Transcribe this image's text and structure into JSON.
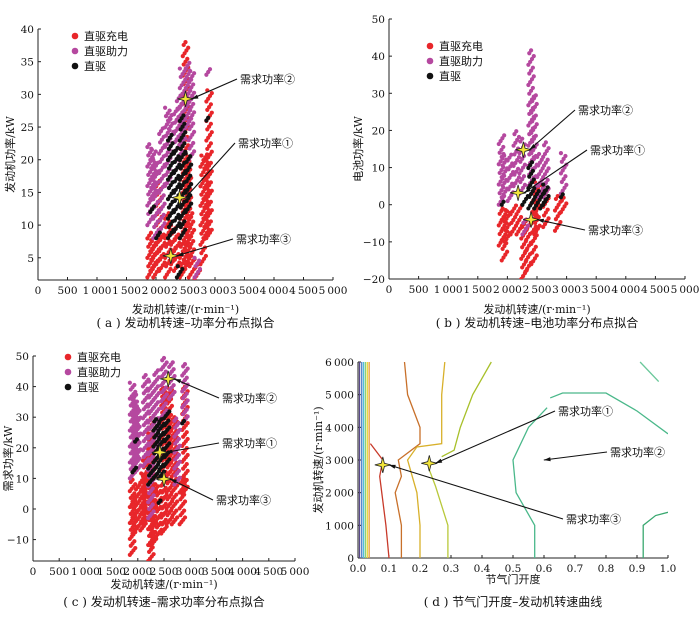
{
  "colors": {
    "charge": "#e8262a",
    "assist": "#b5489f",
    "direct": "#111111",
    "star": "#f3e63a"
  },
  "legend": [
    "直驱充电",
    "直驱助力",
    "直驱"
  ],
  "annotations": [
    "需求功率①",
    "需求功率②",
    "需求功率③"
  ],
  "chart_data": [
    {
      "id": "a",
      "type": "scatter",
      "caption": "( a ) 发动机转速–功率分布点拟合",
      "xlabel": "发动机转速/(r·min⁻¹)",
      "ylabel": "发动机功率/kW",
      "xlim": [
        0,
        5000
      ],
      "ylim": [
        1.6,
        40
      ],
      "xticks": [
        0,
        500,
        1000,
        1500,
        2000,
        2500,
        3000,
        3500,
        4000,
        4500,
        5000
      ],
      "yticks": [
        5,
        10,
        15,
        20,
        25,
        30,
        35,
        40
      ],
      "legend_position": "top-left",
      "series_columns_note_units": "each entry is [rpm, power_min, power_max]",
      "series": [
        {
          "name": "直驱充电",
          "color": "#e8262a",
          "columns": [
            [
              1900,
              2,
              9
            ],
            [
              1950,
              3,
              8
            ],
            [
              2000,
              2,
              7
            ],
            [
              2050,
              4,
              17
            ],
            [
              2100,
              3,
              9
            ],
            [
              2200,
              2,
              12
            ],
            [
              2300,
              4,
              10
            ],
            [
              2350,
              3,
              9
            ],
            [
              2450,
              2,
              26
            ],
            [
              2500,
              3,
              38
            ],
            [
              2550,
              4,
              20
            ],
            [
              2600,
              2,
              12
            ],
            [
              2700,
              1.8,
              5
            ],
            [
              2800,
              4,
              21
            ],
            [
              2850,
              8,
              21
            ],
            [
              2900,
              8,
              31
            ]
          ]
        },
        {
          "name": "直驱助力",
          "color": "#b5489f",
          "columns": [
            [
              1900,
              10,
              22.5
            ],
            [
              1950,
              14,
              22
            ],
            [
              2000,
              8,
              20
            ],
            [
              2100,
              9,
              25
            ],
            [
              2200,
              16,
              28
            ],
            [
              2250,
              20,
              27
            ],
            [
              2350,
              18,
              28
            ],
            [
              2400,
              20,
              30
            ],
            [
              2450,
              22,
              34
            ],
            [
              2550,
              25,
              35
            ],
            [
              2600,
              20,
              34
            ],
            [
              2700,
              2,
              5
            ],
            [
              2900,
              33,
              34
            ]
          ]
        },
        {
          "name": "直驱",
          "color": "#111111",
          "columns": [
            [
              1950,
              12,
              13
            ],
            [
              2050,
              8,
              9
            ],
            [
              2250,
              8,
              24
            ],
            [
              2350,
              9,
              22
            ],
            [
              2450,
              8,
              27
            ],
            [
              2550,
              12,
              21
            ],
            [
              2900,
              26,
              26.5
            ],
            [
              2400,
              2,
              4
            ]
          ]
        }
      ],
      "stars": [
        {
          "label": "需求功率①",
          "x": 2400,
          "y": 14.2
        },
        {
          "label": "需求功率②",
          "x": 2500,
          "y": 29.3
        },
        {
          "label": "需求功率③",
          "x": 2250,
          "y": 5.3
        }
      ]
    },
    {
      "id": "b",
      "type": "scatter",
      "caption": "( b ) 发动机转速–电池功率分布点拟合",
      "xlabel": "发动机转速/(r·min⁻¹)",
      "ylabel": "电池功率/kW",
      "xlim": [
        0,
        5000
      ],
      "ylim": [
        -20,
        50
      ],
      "xticks": [
        0,
        500,
        1000,
        1500,
        2000,
        2500,
        3000,
        3500,
        4000,
        4500,
        5000
      ],
      "yticks": [
        -20,
        -10,
        0,
        10,
        20,
        30,
        40,
        50
      ],
      "legend_position": "top-left",
      "series": [
        {
          "name": "直驱充电",
          "color": "#e8262a",
          "columns": [
            [
              1900,
              -11,
              -1
            ],
            [
              1950,
              -15,
              -1
            ],
            [
              2000,
              -10,
              -1
            ],
            [
              2100,
              -8,
              0
            ],
            [
              2200,
              -8,
              0
            ],
            [
              2280,
              -20,
              -4
            ],
            [
              2350,
              -18,
              -4
            ],
            [
              2450,
              -16,
              2
            ],
            [
              2500,
              -8,
              6
            ],
            [
              2650,
              -6,
              5
            ],
            [
              2850,
              -7,
              3
            ],
            [
              2950,
              -2,
              2
            ]
          ]
        },
        {
          "name": "直驱助力",
          "color": "#b5489f",
          "columns": [
            [
              1900,
              0,
              19
            ],
            [
              1950,
              2,
              14
            ],
            [
              2050,
              1,
              14
            ],
            [
              2150,
              5,
              20
            ],
            [
              2250,
              3,
              18
            ],
            [
              2400,
              5,
              42
            ],
            [
              2450,
              3,
              30
            ],
            [
              2550,
              2,
              14
            ],
            [
              2650,
              2,
              17
            ],
            [
              2950,
              3,
              14
            ],
            [
              2300,
              -8,
              -4
            ]
          ]
        },
        {
          "name": "直驱",
          "color": "#111111",
          "columns": [
            [
              1950,
              0,
              1
            ],
            [
              2300,
              0,
              3
            ],
            [
              2400,
              -1,
              12
            ],
            [
              2500,
              -1,
              5
            ],
            [
              2600,
              -1,
              4
            ],
            [
              2650,
              0,
              6
            ],
            [
              2950,
              2,
              3
            ]
          ]
        }
      ],
      "stars": [
        {
          "label": "需求功率①",
          "x": 2180,
          "y": 3.2
        },
        {
          "label": "需求功率②",
          "x": 2270,
          "y": 14.8
        },
        {
          "label": "需求功率③",
          "x": 2400,
          "y": -4
        }
      ]
    },
    {
      "id": "c",
      "type": "scatter",
      "caption": "( c ) 发动机转速–需求功率分布点拟合",
      "xlabel": "发动机转速/(r·min⁻¹)",
      "ylabel": "需求功率/kW",
      "xlim": [
        0,
        5000
      ],
      "ylim": [
        -17,
        50
      ],
      "xticks": [
        0,
        500,
        1000,
        1500,
        2000,
        2500,
        3000,
        3500,
        4000,
        4500,
        5000
      ],
      "yticks": [
        -10,
        0,
        10,
        20,
        30,
        40,
        50
      ],
      "legend_position": "top-left",
      "series": [
        {
          "name": "直驱充电",
          "color": "#e8262a",
          "columns": [
            [
              1900,
              -15,
              10
            ],
            [
              1950,
              -8,
              4
            ],
            [
              2000,
              -7,
              8
            ],
            [
              2100,
              -7,
              12
            ],
            [
              2150,
              -5,
              18
            ],
            [
              2250,
              -17,
              25
            ],
            [
              2300,
              -12,
              30
            ],
            [
              2400,
              -9,
              8
            ],
            [
              2500,
              -8,
              40
            ],
            [
              2600,
              -5,
              40
            ],
            [
              2700,
              -5,
              30
            ],
            [
              2850,
              -5,
              10
            ],
            [
              2900,
              5,
              40
            ]
          ]
        },
        {
          "name": "直驱助力",
          "color": "#b5489f",
          "columns": [
            [
              1900,
              10,
              42
            ],
            [
              1950,
              15,
              38
            ],
            [
              2000,
              12,
              34
            ],
            [
              2150,
              14,
              44
            ],
            [
              2250,
              -3,
              42
            ],
            [
              2350,
              20,
              46
            ],
            [
              2500,
              30,
              50
            ],
            [
              2650,
              36,
              48
            ],
            [
              2750,
              8,
              30
            ],
            [
              2900,
              28,
              48
            ]
          ]
        },
        {
          "name": "直驱",
          "color": "#111111",
          "columns": [
            [
              1950,
              12,
              14
            ],
            [
              2000,
              22,
              23
            ],
            [
              2250,
              8,
              14
            ],
            [
              2350,
              10,
              30
            ],
            [
              2450,
              10,
              30
            ],
            [
              2550,
              14,
              32
            ],
            [
              2900,
              28,
              29
            ],
            [
              2450,
              2,
              3
            ]
          ]
        }
      ],
      "stars": [
        {
          "label": "需求功率①",
          "x": 2420,
          "y": 18.5
        },
        {
          "label": "需求功率②",
          "x": 2580,
          "y": 42.5
        },
        {
          "label": "需求功率③",
          "x": 2500,
          "y": 9.8
        }
      ]
    },
    {
      "id": "d",
      "type": "line",
      "caption": "( d ) 节气门开度–发动机转速曲线",
      "xlabel": "节气门开度",
      "ylabel": "发动机转速/(r·min⁻¹)",
      "xlim": [
        0,
        1.0
      ],
      "ylim": [
        0,
        6000
      ],
      "xticks": [
        0.0,
        0.1,
        0.2,
        0.3,
        0.4,
        0.5,
        0.6,
        0.7,
        0.8,
        0.9,
        1.0
      ],
      "yticks": [
        0,
        1000,
        2000,
        3000,
        4000,
        5000,
        6000
      ],
      "contours": [
        {
          "color": "#5a4a8a",
          "points": [
            [
              0.005,
              0
            ],
            [
              0.005,
              6000
            ]
          ]
        },
        {
          "color": "#4b7fc8",
          "points": [
            [
              0.012,
              0
            ],
            [
              0.012,
              6000
            ]
          ]
        },
        {
          "color": "#52c0d8",
          "points": [
            [
              0.018,
              0
            ],
            [
              0.018,
              6000
            ]
          ]
        },
        {
          "color": "#8ad07a",
          "points": [
            [
              0.024,
              0
            ],
            [
              0.024,
              6000
            ]
          ]
        },
        {
          "color": "#e8d83a",
          "points": [
            [
              0.03,
              0
            ],
            [
              0.03,
              6000
            ]
          ]
        },
        {
          "color": "#e89a3a",
          "points": [
            [
              0.036,
              0
            ],
            [
              0.036,
              6000
            ]
          ]
        },
        {
          "color": "#c83a2a",
          "points": [
            [
              0.04,
              3500
            ],
            [
              0.08,
              3000
            ],
            [
              0.07,
              2500
            ],
            [
              0.09,
              1000
            ],
            [
              0.1,
              0
            ]
          ]
        },
        {
          "color": "#c8702a",
          "points": [
            [
              0.15,
              6000
            ],
            [
              0.16,
              5000
            ],
            [
              0.2,
              4000
            ],
            [
              0.2,
              3500
            ],
            [
              0.13,
              3000
            ],
            [
              0.14,
              2500
            ],
            [
              0.12,
              2000
            ],
            [
              0.14,
              1000
            ],
            [
              0.14,
              0
            ]
          ]
        },
        {
          "color": "#d8b02a",
          "points": [
            [
              0.28,
              6000
            ],
            [
              0.27,
              5000
            ],
            [
              0.27,
              4000
            ],
            [
              0.27,
              3500
            ],
            [
              0.19,
              3400
            ],
            [
              0.16,
              3000
            ],
            [
              0.19,
              2000
            ],
            [
              0.2,
              1000
            ],
            [
              0.2,
              0
            ]
          ]
        },
        {
          "color": "#a8c02a",
          "points": [
            [
              0.43,
              6000
            ],
            [
              0.37,
              5000
            ],
            [
              0.33,
              4000
            ],
            [
              0.31,
              3300
            ],
            [
              0.27,
              3100
            ]
          ]
        },
        {
          "color": "#b8c83a",
          "points": [
            [
              0.23,
              2700
            ],
            [
              0.25,
              2200
            ],
            [
              0.29,
              1000
            ],
            [
              0.29,
              0
            ]
          ]
        },
        {
          "color": "#4ab88a",
          "points": [
            [
              0.61,
              4600
            ],
            [
              0.55,
              4000
            ],
            [
              0.5,
              3000
            ],
            [
              0.51,
              2000
            ],
            [
              0.57,
              1000
            ],
            [
              0.57,
              0
            ]
          ]
        },
        {
          "color": "#4ab88a",
          "points": [
            [
              0.62,
              4900
            ],
            [
              0.66,
              5050
            ],
            [
              0.8,
              5050
            ],
            [
              0.9,
              4500
            ],
            [
              1.0,
              3800
            ]
          ]
        },
        {
          "color": "#3aa870",
          "points": [
            [
              0.92,
              0
            ],
            [
              0.92,
              1000
            ],
            [
              0.96,
              1300
            ],
            [
              1.0,
              1400
            ]
          ]
        },
        {
          "color": "#6ac89a",
          "points": [
            [
              0.91,
              6000
            ],
            [
              0.97,
              5400
            ]
          ]
        }
      ],
      "stars": [
        {
          "label": "需求功率①",
          "x": 0.23,
          "y": 2900
        },
        {
          "label": "需求功率③",
          "x": 0.08,
          "y": 2850
        }
      ],
      "arrow_targets": [
        {
          "label": "需求功率②",
          "x": 0.58,
          "y": 3000
        }
      ]
    }
  ]
}
